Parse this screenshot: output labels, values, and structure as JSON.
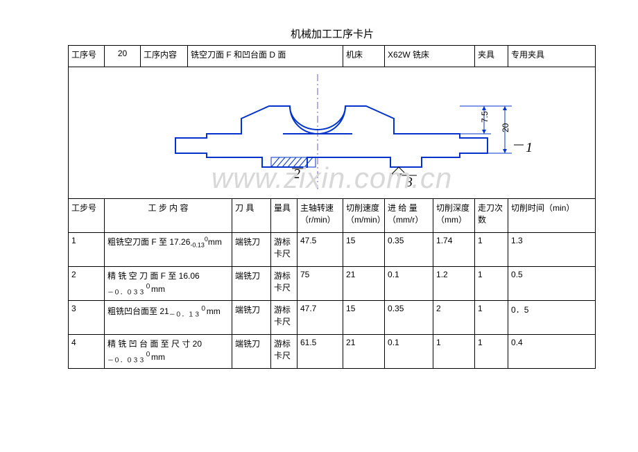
{
  "title": "机械加工工序卡片",
  "header": {
    "labels": {
      "procNo": "工序号",
      "procContent": "工序内容",
      "machine": "机床",
      "fixture": "夹具"
    },
    "values": {
      "procNo": "20",
      "procContent": "铣空刀面 F 和凹台面 D 面",
      "machine": "X62W 铣床",
      "fixture": "专用夹具"
    }
  },
  "diagram": {
    "main_stroke": "#0033cc",
    "axis_stroke": "#6a5acd",
    "dim_stroke": "#0033cc",
    "background": "#ffffff",
    "dims": {
      "d1": "7.5",
      "d2": "20"
    },
    "callouts": {
      "c1": "1",
      "c2": "2",
      "c3": "3"
    },
    "watermark_text": "www.zixin.com.cn",
    "watermark_color": "#d8d8d8"
  },
  "stepHeader": {
    "stepNo": "工步号",
    "stepContent": "工 步 内 容",
    "tool": "刀 具",
    "gauge": "量具",
    "spindle": "主轴转速（r/min）",
    "cutSpeed": "切削速度（m/min）",
    "feed": "进 给 量（mm/r）",
    "depth": "切削深度（mm）",
    "passes": "走刀次数",
    "time": "切削时间（min）"
  },
  "steps": [
    {
      "no": "1",
      "content_html": "粗铣空刀面 F 至 17.26<sub>-0.13</sub><sup>0</sup>mm",
      "tool": "端铣刀",
      "gauge": "游标卡尺",
      "spindle": "47.5",
      "cutSpeed": "15",
      "feed": "0.35",
      "depth": "1.74",
      "passes": "1",
      "time": "1.3"
    },
    {
      "no": "2",
      "content_html": "精 铣 空 刀 面 F 至 16.06<br><sub>－０．０３３</sub><sup>０</sup>mm",
      "tool": "端铣刀",
      "gauge": "游标卡尺",
      "spindle": "75",
      "cutSpeed": "21",
      "feed": "0.1",
      "depth": "1.2",
      "passes": "1",
      "time": "0.5"
    },
    {
      "no": "3",
      "content_html": "粗铣凹台面至 21<sub>－０．１３</sub><sup>０</sup>mm",
      "tool": "端铣刀",
      "gauge": "游标卡尺",
      "spindle": "47.7",
      "cutSpeed": "15",
      "feed": "0.35",
      "depth": "2",
      "passes": "1",
      "time": "0．5"
    },
    {
      "no": "4",
      "content_html": "精 铣 凹 台 面 至 尺 寸 20<br><sub>－０．０３３</sub><sup>０</sup>mm",
      "tool": "端铣刀",
      "gauge": "游标卡尺",
      "spindle": "61.5",
      "cutSpeed": "21",
      "feed": "0.1",
      "depth": "1",
      "passes": "1",
      "time": "0.4"
    }
  ]
}
